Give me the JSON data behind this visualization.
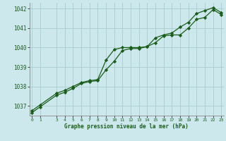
{
  "title": "Graphe pression niveau de la mer (hPa)",
  "bg_color": "#cce8ec",
  "grid_color": "#aacccc",
  "line_color": "#1a5c1a",
  "marker_color": "#1a5c1a",
  "xlim": [
    -0.3,
    23.3
  ],
  "ylim": [
    1036.5,
    1042.3
  ],
  "yticks": [
    1037,
    1038,
    1039,
    1040,
    1041,
    1042
  ],
  "xticks": [
    0,
    1,
    3,
    4,
    5,
    6,
    7,
    8,
    9,
    10,
    11,
    12,
    13,
    14,
    15,
    16,
    17,
    18,
    19,
    20,
    21,
    22,
    23
  ],
  "series1_x": [
    0,
    1,
    3,
    4,
    5,
    6,
    7,
    8,
    9,
    10,
    11,
    12,
    13,
    14,
    15,
    16,
    17,
    18,
    19,
    20,
    21,
    22,
    23
  ],
  "series1_y": [
    1036.75,
    1037.05,
    1037.65,
    1037.8,
    1038.0,
    1038.2,
    1038.3,
    1038.35,
    1039.35,
    1039.9,
    1040.0,
    1040.0,
    1040.0,
    1040.05,
    1040.5,
    1040.65,
    1040.75,
    1041.05,
    1041.3,
    1041.75,
    1041.9,
    1042.05,
    1041.8
  ],
  "series2_x": [
    0,
    1,
    3,
    4,
    5,
    6,
    7,
    8,
    9,
    10,
    11,
    12,
    13,
    14,
    15,
    16,
    17,
    18,
    19,
    20,
    21,
    22,
    23
  ],
  "series2_y": [
    1036.65,
    1036.95,
    1037.55,
    1037.7,
    1037.9,
    1038.15,
    1038.25,
    1038.3,
    1038.85,
    1039.3,
    1039.85,
    1039.95,
    1039.95,
    1040.05,
    1040.25,
    1040.6,
    1040.65,
    1040.65,
    1041.0,
    1041.45,
    1041.55,
    1041.95,
    1041.7
  ]
}
